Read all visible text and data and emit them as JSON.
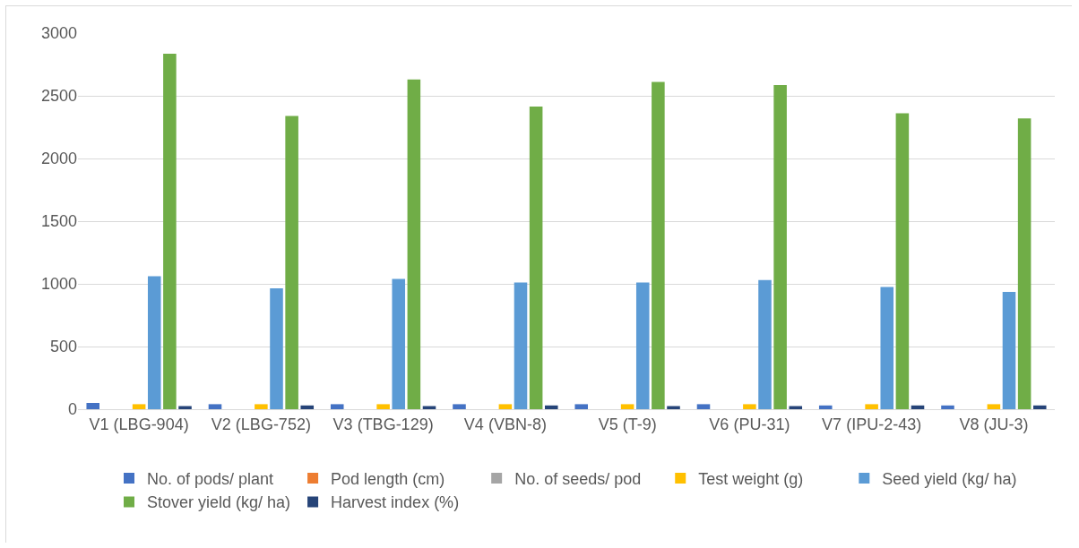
{
  "chart_data": {
    "type": "bar",
    "categories": [
      "V1 (LBG-904)",
      "V2 (LBG-752)",
      "V3 (TBG-129)",
      "V4 (VBN-8)",
      "V5 (T-9)",
      "V6 (PU-31)",
      "V7 (IPU-2-43)",
      "V8 (JU-3)"
    ],
    "series": [
      {
        "name": "No. of pods/ plant",
        "color": "#4472c4",
        "values": [
          50,
          40,
          40,
          40,
          40,
          40,
          30,
          30
        ]
      },
      {
        "name": "Pod length (cm)",
        "color": "#ed7d31",
        "values": [
          null,
          null,
          null,
          null,
          null,
          null,
          null,
          null
        ]
      },
      {
        "name": "No. of seeds/ pod",
        "color": "#a5a5a5",
        "values": [
          null,
          null,
          null,
          null,
          null,
          null,
          null,
          null
        ]
      },
      {
        "name": "Test weight (g)",
        "color": "#ffc000",
        "values": [
          40,
          40,
          40,
          40,
          40,
          40,
          40,
          40
        ]
      },
      {
        "name": "Seed yield (kg/ ha)",
        "color": "#5b9bd5",
        "values": [
          1060,
          965,
          1040,
          1010,
          1010,
          1030,
          975,
          935
        ]
      },
      {
        "name": "Stover yield (kg/ ha)",
        "color": "#70ad47",
        "values": [
          2835,
          2340,
          2630,
          2415,
          2610,
          2585,
          2360,
          2320
        ]
      },
      {
        "name": "Harvest index (%)",
        "color": "#264478",
        "values": [
          25,
          30,
          25,
          30,
          25,
          25,
          30,
          30
        ]
      }
    ],
    "ylim": [
      0,
      3000
    ],
    "yticks": [
      0,
      500,
      1000,
      1500,
      2000,
      2500,
      3000
    ],
    "grid": "y",
    "legend": "bottom"
  }
}
